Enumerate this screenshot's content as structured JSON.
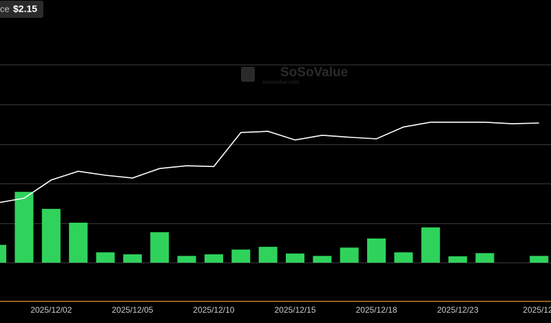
{
  "chart_data": {
    "type": "combo",
    "price_label": "ce",
    "price_value": "$2.15",
    "watermark": "SoSoValue",
    "watermark_url": "sosovalue.com",
    "categories": [
      null,
      null,
      "2025/12/02",
      null,
      null,
      "2025/12/05",
      null,
      null,
      "2025/12/10",
      null,
      null,
      "2025/12/15",
      null,
      null,
      "2025/12/18",
      null,
      null,
      "2025/12/23",
      null,
      null,
      "2025/12/"
    ],
    "series": [
      {
        "type": "bar",
        "color": "#2fd35c",
        "values": [
          0.45,
          1.79,
          1.36,
          1.01,
          0.26,
          0.21,
          0.77,
          0.17,
          0.21,
          0.33,
          0.4,
          0.23,
          0.17,
          0.38,
          0.61,
          0.26,
          0.89,
          0.16,
          0.24,
          null,
          0.17
        ]
      },
      {
        "type": "line",
        "color": "#ffffff",
        "values": [
          1.51,
          1.63,
          2.09,
          2.31,
          2.21,
          2.14,
          2.38,
          2.45,
          2.43,
          3.29,
          3.32,
          3.1,
          3.22,
          3.17,
          3.13,
          3.43,
          3.55,
          3.55,
          3.55,
          3.51,
          3.53
        ]
      }
    ],
    "ylim": [
      -0.97,
      6.64
    ],
    "yticks": [
      0,
      1,
      2,
      3,
      4,
      5
    ],
    "grid": true
  }
}
